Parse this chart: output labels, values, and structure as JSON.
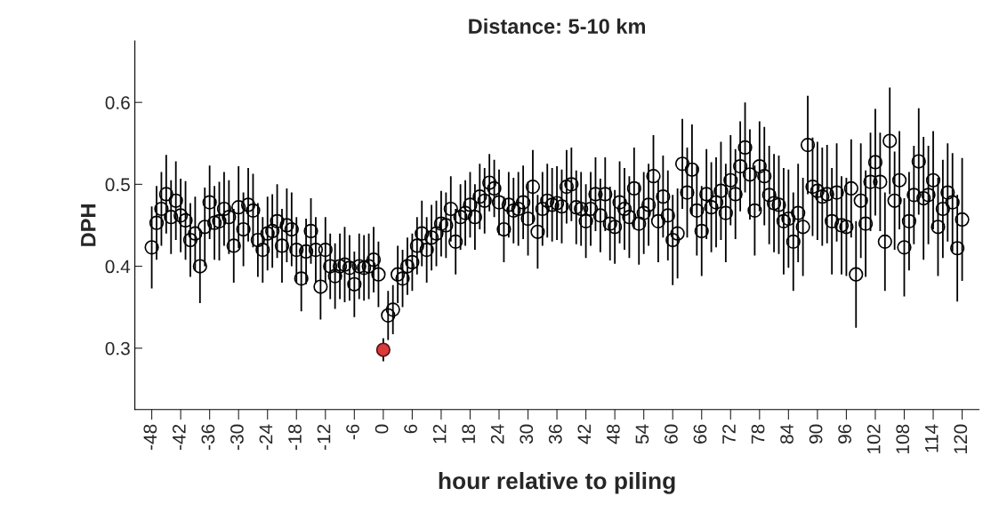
{
  "chart_data": {
    "type": "scatter",
    "title": "Distance: 5-10 km",
    "xlabel": "hour relative to piling",
    "ylabel": "DPH",
    "x": [
      -48,
      -47,
      -46,
      -45,
      -44,
      -43,
      -42,
      -41,
      -40,
      -39,
      -38,
      -37,
      -36,
      -35,
      -34,
      -33,
      -32,
      -31,
      -30,
      -29,
      -28,
      -27,
      -26,
      -25,
      -24,
      -23,
      -22,
      -21,
      -20,
      -19,
      -18,
      -17,
      -16,
      -15,
      -14,
      -13,
      -12,
      -11,
      -10,
      -9,
      -8,
      -7,
      -6,
      -5,
      -4,
      -3,
      -2,
      -1,
      0,
      1,
      2,
      3,
      4,
      5,
      6,
      7,
      8,
      9,
      10,
      11,
      12,
      13,
      14,
      15,
      16,
      17,
      18,
      19,
      20,
      21,
      22,
      23,
      24,
      25,
      26,
      27,
      28,
      29,
      30,
      31,
      32,
      33,
      34,
      35,
      36,
      37,
      38,
      39,
      40,
      41,
      42,
      43,
      44,
      45,
      46,
      47,
      48,
      49,
      50,
      51,
      52,
      53,
      54,
      55,
      56,
      57,
      58,
      59,
      60,
      61,
      62,
      63,
      64,
      65,
      66,
      67,
      68,
      69,
      70,
      71,
      72,
      73,
      74,
      75,
      76,
      77,
      78,
      79,
      80,
      81,
      82,
      83,
      84,
      85,
      86,
      87,
      88,
      89,
      90,
      91,
      92,
      93,
      94,
      95,
      96,
      97,
      98,
      99,
      100,
      101,
      102,
      103,
      104,
      105,
      106,
      107,
      108,
      109,
      110,
      111,
      112,
      113,
      114,
      115,
      116,
      117,
      118,
      119,
      120
    ],
    "series": [
      {
        "color": "#000000",
        "values": [
          0.423,
          0.453,
          0.47,
          0.488,
          0.46,
          0.48,
          0.462,
          0.456,
          0.432,
          0.44,
          0.4,
          0.448,
          0.478,
          0.453,
          0.455,
          0.47,
          0.46,
          0.425,
          0.472,
          0.445,
          0.475,
          0.468,
          0.432,
          0.42,
          0.44,
          0.443,
          0.455,
          0.425,
          0.45,
          0.445,
          0.42,
          0.385,
          0.418,
          0.443,
          0.42,
          0.375,
          0.42,
          0.4,
          0.388,
          0.4,
          0.402,
          0.398,
          0.378,
          0.4,
          0.398,
          0.4,
          0.408,
          0.39,
          null,
          0.34,
          0.347,
          0.39,
          0.385,
          0.4,
          0.405,
          0.425,
          0.44,
          0.42,
          0.435,
          0.44,
          0.452,
          0.45,
          0.47,
          0.43,
          0.46,
          0.465,
          0.475,
          0.46,
          0.485,
          0.48,
          0.502,
          0.495,
          0.478,
          0.445,
          0.475,
          0.468,
          0.47,
          0.478,
          0.458,
          0.497,
          0.442,
          0.47,
          0.48,
          0.475,
          0.477,
          0.473,
          0.497,
          0.5,
          0.472,
          0.47,
          0.455,
          0.47,
          0.488,
          0.462,
          0.488,
          0.452,
          0.448,
          0.478,
          0.47,
          0.46,
          0.495,
          0.452,
          0.465,
          0.475,
          0.51,
          0.455,
          0.485,
          0.462,
          0.432,
          0.44,
          0.525,
          0.49,
          0.518,
          0.468,
          0.443,
          0.488,
          0.472,
          0.478,
          0.492,
          0.465,
          0.505,
          0.488,
          0.522,
          0.545,
          0.512,
          0.468,
          0.522,
          0.51,
          0.487,
          0.477,
          0.475,
          0.455,
          0.458,
          0.43,
          0.465,
          0.448,
          0.548,
          0.497,
          0.492,
          0.485,
          0.488,
          0.455,
          0.49,
          0.45,
          0.448,
          0.495,
          0.39,
          0.48,
          0.452,
          0.503,
          0.527,
          0.503,
          0.43,
          0.553,
          0.48,
          0.505,
          0.423,
          0.455,
          0.487,
          0.528,
          0.483,
          0.487,
          0.505,
          0.448,
          0.47,
          0.49,
          0.478,
          0.422,
          0.457
        ],
        "errors": [
          0.05,
          0.045,
          0.045,
          0.048,
          0.045,
          0.048,
          0.045,
          0.048,
          0.045,
          0.045,
          0.045,
          0.048,
          0.045,
          0.045,
          0.048,
          0.045,
          0.045,
          0.045,
          0.05,
          0.045,
          0.045,
          0.045,
          0.045,
          0.04,
          0.045,
          0.045,
          0.045,
          0.045,
          0.045,
          0.045,
          0.04,
          0.04,
          0.04,
          0.04,
          0.04,
          0.04,
          0.04,
          0.04,
          0.04,
          0.04,
          0.046,
          0.04,
          0.04,
          0.04,
          0.04,
          0.04,
          0.04,
          0.04,
          null,
          0.03,
          0.03,
          0.035,
          0.035,
          0.035,
          0.035,
          0.035,
          0.04,
          0.04,
          0.04,
          0.04,
          0.04,
          0.04,
          0.04,
          0.04,
          0.04,
          0.04,
          0.04,
          0.04,
          0.04,
          0.04,
          0.035,
          0.035,
          0.04,
          0.04,
          0.04,
          0.04,
          0.045,
          0.045,
          0.045,
          0.045,
          0.045,
          0.045,
          0.045,
          0.045,
          0.045,
          0.045,
          0.045,
          0.045,
          0.045,
          0.045,
          0.045,
          0.045,
          0.045,
          0.045,
          0.045,
          0.045,
          0.045,
          0.05,
          0.05,
          0.05,
          0.05,
          0.05,
          0.05,
          0.05,
          0.05,
          0.05,
          0.05,
          0.055,
          0.055,
          0.055,
          0.055,
          0.055,
          0.055,
          0.055,
          0.055,
          0.055,
          0.055,
          0.055,
          0.06,
          0.06,
          0.055,
          0.055,
          0.055,
          0.055,
          0.055,
          0.055,
          0.055,
          0.06,
          0.06,
          0.06,
          0.06,
          0.065,
          0.06,
          0.06,
          0.06,
          0.06,
          0.06,
          0.06,
          0.06,
          0.06,
          0.06,
          0.065,
          0.06,
          0.06,
          0.06,
          0.06,
          0.065,
          0.07,
          0.065,
          0.06,
          0.065,
          0.06,
          0.06,
          0.065,
          0.06,
          0.06,
          0.06,
          0.06,
          0.06,
          0.065,
          0.075,
          0.06,
          0.06,
          0.06,
          0.06,
          0.06,
          0.06,
          0.065,
          0.075
        ]
      },
      {
        "color": "#d93a3a",
        "x": [
          0
        ],
        "values": [
          0.298
        ],
        "errors": [
          0.014
        ]
      }
    ],
    "xlim": [
      -51.5,
      123.5
    ],
    "ylim": [
      0.225,
      0.675
    ],
    "xticks": [
      -48,
      -42,
      -36,
      -30,
      -24,
      -18,
      -12,
      -6,
      0,
      6,
      12,
      18,
      24,
      30,
      36,
      42,
      48,
      54,
      60,
      66,
      72,
      78,
      84,
      90,
      96,
      102,
      108,
      114,
      120
    ],
    "yticks": [
      0.3,
      0.4,
      0.5,
      0.6
    ],
    "marker": "circle",
    "grid": false,
    "legend": false
  }
}
